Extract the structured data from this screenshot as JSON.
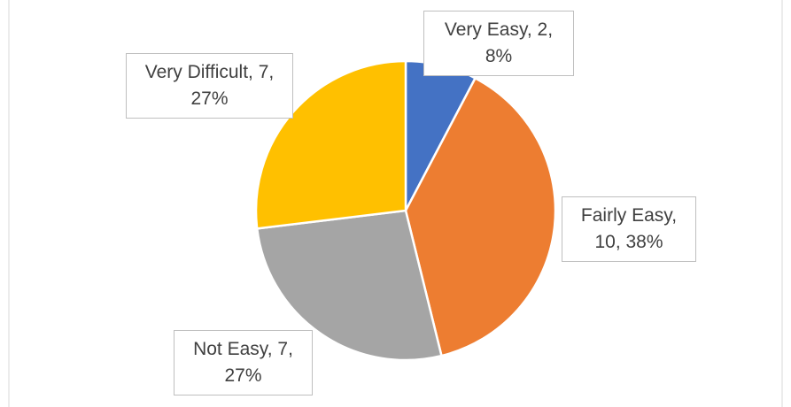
{
  "chart_data": {
    "type": "pie",
    "values": [
      2,
      10,
      7,
      7
    ],
    "value_labels": [
      "Very Easy, 2, 8%",
      "Fairly Easy, 10, 38%",
      "Not Easy, 7, 27%",
      "Very Difficult, 7, 27%"
    ],
    "colors": [
      "#4472c4",
      "#ed7d31",
      "#a5a5a5",
      "#ffc000"
    ]
  }
}
